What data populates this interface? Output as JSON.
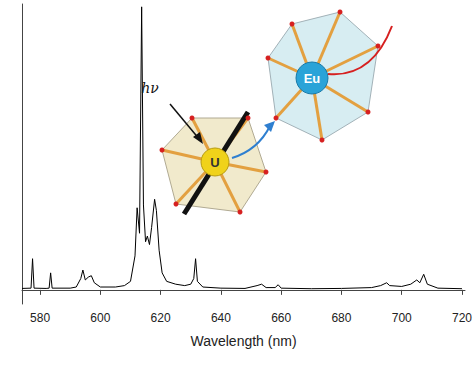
{
  "chart_data": {
    "type": "line",
    "xlabel": "Wavelength (nm)",
    "x": [
      574,
      577,
      577.5,
      578,
      582,
      583,
      583.5,
      584,
      590,
      592,
      593.5,
      594.2,
      595,
      596,
      597,
      598,
      600,
      605,
      608,
      610,
      611.5,
      612.2,
      613,
      613.7,
      614.3,
      615,
      615.6,
      616.3,
      617,
      618,
      618.6,
      619.5,
      620.5,
      622,
      625,
      628,
      630,
      631,
      631.6,
      632.2,
      634,
      640,
      648,
      652,
      653.5,
      655,
      658,
      659,
      660,
      670,
      680,
      690,
      693,
      695,
      696,
      700,
      703,
      705,
      706,
      707.3,
      708.5,
      712,
      720
    ],
    "values": [
      0.5,
      0.6,
      11,
      0.6,
      0.5,
      0.6,
      6,
      0.6,
      0.6,
      1,
      4,
      7,
      3.5,
      4.5,
      5,
      2.5,
      1,
      1,
      1.5,
      3,
      12,
      29,
      20,
      100,
      30,
      17,
      19,
      16,
      22,
      32,
      28,
      14,
      6,
      3,
      2,
      1.5,
      2,
      4,
      11,
      3,
      1,
      0.6,
      0.5,
      1.5,
      2,
      0.8,
      0.8,
      1.8,
      0.6,
      0.4,
      0.5,
      0.8,
      1.5,
      2.5,
      1.5,
      1.2,
      2,
      3.5,
      2.5,
      5.5,
      2,
      0.6,
      0.4
    ],
    "color": "#000000",
    "xlim": [
      574,
      721
    ],
    "xticks": [
      580,
      600,
      620,
      640,
      660,
      680,
      700,
      720
    ],
    "ylim": [
      -5,
      101
    ],
    "tick_labels": "x",
    "grid": false,
    "annotations": [
      "hν",
      "U",
      "Eu"
    ]
  }
}
